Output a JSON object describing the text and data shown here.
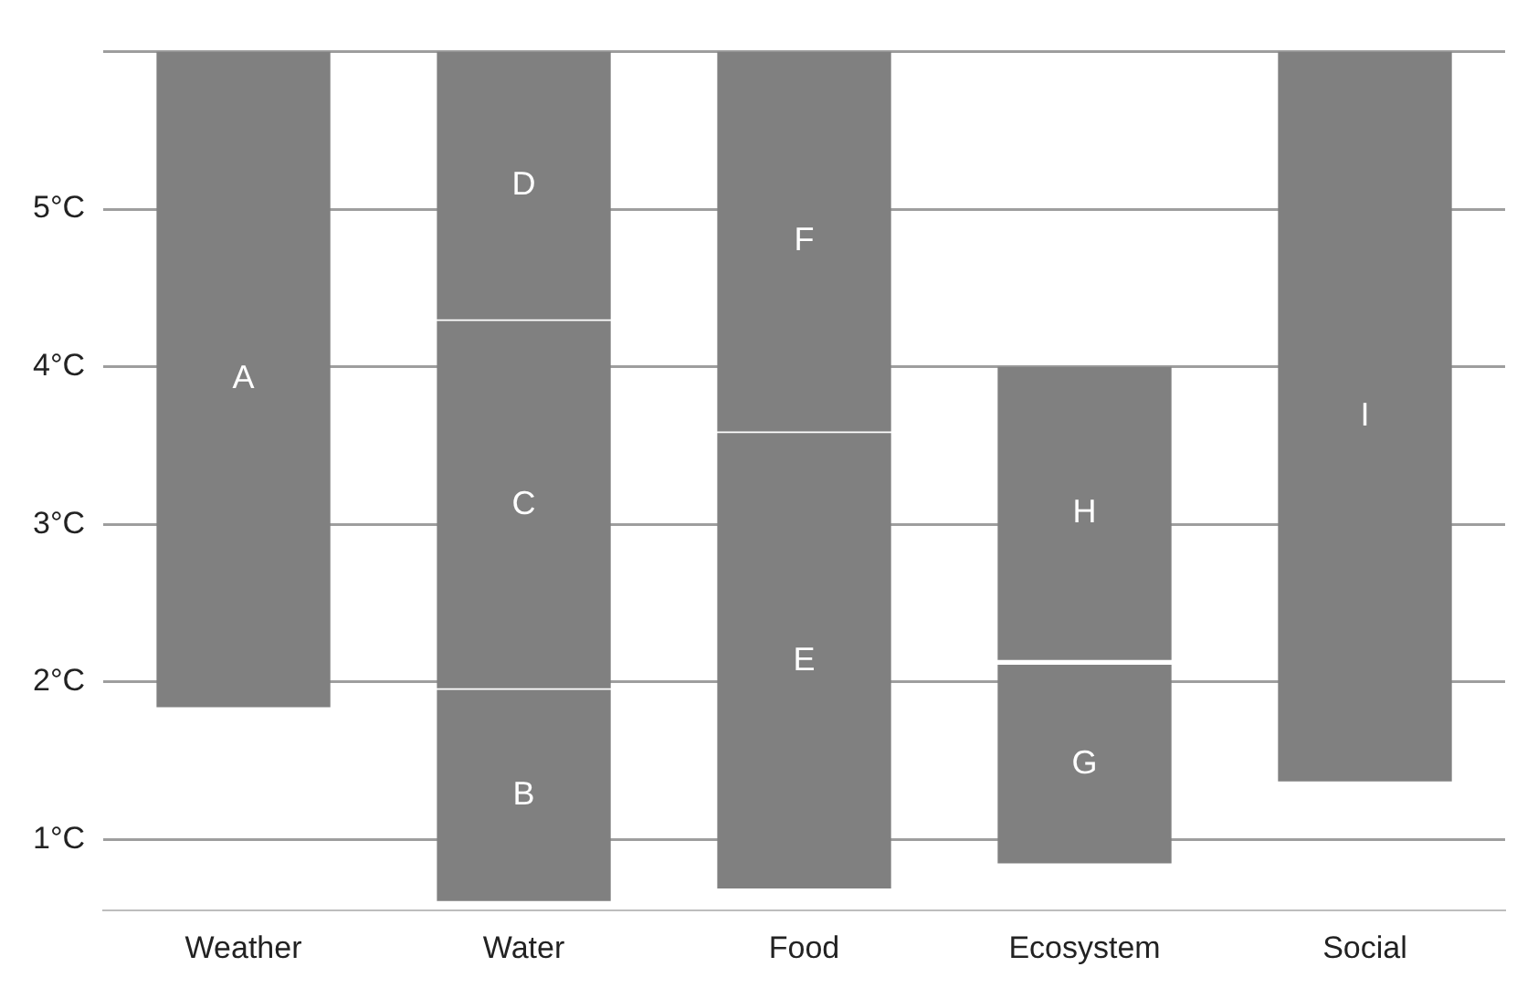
{
  "chart_data": {
    "type": "bar",
    "categories": [
      "Weather",
      "Water",
      "Food",
      "Ecosystem",
      "Social"
    ],
    "series": [
      {
        "color": "#808080",
        "base": [
          1.84,
          0.61,
          0.69,
          0.85,
          1.37
        ],
        "values": [
          4.16,
          1.34,
          2.89,
          1.26,
          4.63
        ],
        "value_labels": [
          "A",
          "B",
          "E",
          "G",
          "I"
        ]
      },
      {
        "color": "#808080",
        "base": [
          null,
          1.96,
          3.59,
          2.14,
          null
        ],
        "values": [
          null,
          2.33,
          2.41,
          1.86,
          null
        ],
        "value_labels": [
          null,
          "C",
          "F",
          "H",
          null
        ]
      },
      {
        "color": "#808080",
        "base": [
          null,
          4.3,
          null,
          null,
          null
        ],
        "values": [
          null,
          1.7,
          null,
          null,
          null
        ],
        "value_labels": [
          null,
          "D",
          null,
          null,
          null
        ]
      }
    ],
    "ylim": [
      0.55,
      6
    ],
    "yticks": [
      {
        "value": 1,
        "label": "1°C"
      },
      {
        "value": 2,
        "label": "2°C"
      },
      {
        "value": 3,
        "label": "3°C"
      },
      {
        "value": 4,
        "label": "4°C"
      },
      {
        "value": 5,
        "label": "5°C"
      },
      {
        "value": 6,
        "label": null
      }
    ],
    "grid": "y",
    "legend": false
  }
}
